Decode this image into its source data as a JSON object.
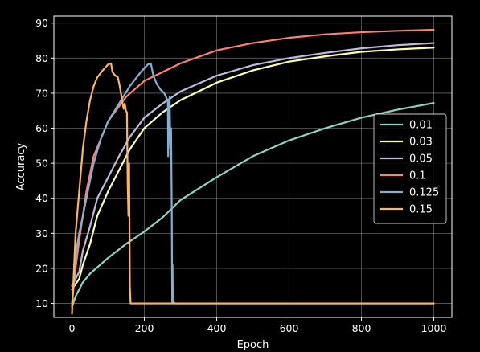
{
  "chart_data": {
    "type": "line",
    "title": "",
    "xlabel": "Epoch",
    "ylabel": "Accuracy",
    "xlim": [
      -50,
      1050
    ],
    "ylim": [
      6,
      92
    ],
    "xticks": [
      0,
      200,
      400,
      600,
      800,
      1000
    ],
    "yticks": [
      10,
      20,
      30,
      40,
      50,
      60,
      70,
      80,
      90
    ],
    "grid": true,
    "legend_position": "center-right",
    "background": "#000000",
    "grid_color": "#b0b0b0",
    "series": [
      {
        "name": "0.01",
        "color": "#8dd3c7",
        "points": [
          [
            0,
            9
          ],
          [
            10,
            12
          ],
          [
            30,
            16
          ],
          [
            50,
            18.5
          ],
          [
            100,
            23
          ],
          [
            150,
            27
          ],
          [
            200,
            30.5
          ],
          [
            250,
            34.5
          ],
          [
            300,
            39.5
          ],
          [
            400,
            46
          ],
          [
            500,
            52
          ],
          [
            600,
            56.5
          ],
          [
            700,
            60
          ],
          [
            800,
            63
          ],
          [
            900,
            65.3
          ],
          [
            1000,
            67.2
          ]
        ]
      },
      {
        "name": "0.03",
        "color": "#feffb3",
        "points": [
          [
            0,
            14
          ],
          [
            10,
            15.5
          ],
          [
            20,
            17
          ],
          [
            30,
            21
          ],
          [
            50,
            27
          ],
          [
            70,
            35
          ],
          [
            100,
            42
          ],
          [
            130,
            48
          ],
          [
            160,
            54
          ],
          [
            200,
            60
          ],
          [
            250,
            64.5
          ],
          [
            300,
            68
          ],
          [
            400,
            73
          ],
          [
            500,
            76.5
          ],
          [
            600,
            79
          ],
          [
            700,
            80.5
          ],
          [
            800,
            81.8
          ],
          [
            900,
            82.5
          ],
          [
            1000,
            83
          ]
        ]
      },
      {
        "name": "0.05",
        "color": "#bfbbd9",
        "points": [
          [
            0,
            15
          ],
          [
            10,
            17
          ],
          [
            20,
            19
          ],
          [
            30,
            25
          ],
          [
            50,
            32
          ],
          [
            70,
            40
          ],
          [
            100,
            46
          ],
          [
            130,
            52
          ],
          [
            160,
            57.5
          ],
          [
            200,
            63
          ],
          [
            250,
            67
          ],
          [
            300,
            70.5
          ],
          [
            400,
            75
          ],
          [
            500,
            78
          ],
          [
            600,
            80
          ],
          [
            700,
            81.5
          ],
          [
            800,
            82.8
          ],
          [
            900,
            83.7
          ],
          [
            1000,
            84.3
          ]
        ]
      },
      {
        "name": "0.1",
        "color": "#fa8174",
        "points": [
          [
            0,
            10
          ],
          [
            10,
            20
          ],
          [
            20,
            28
          ],
          [
            40,
            42
          ],
          [
            60,
            52
          ],
          [
            80,
            57
          ],
          [
            100,
            62
          ],
          [
            150,
            69
          ],
          [
            200,
            73.5
          ],
          [
            250,
            76
          ],
          [
            300,
            78.5
          ],
          [
            400,
            82.2
          ],
          [
            500,
            84.3
          ],
          [
            600,
            85.8
          ],
          [
            700,
            86.8
          ],
          [
            800,
            87.4
          ],
          [
            900,
            87.8
          ],
          [
            1000,
            88.1
          ]
        ]
      },
      {
        "name": "0.125",
        "color": "#81b1d2",
        "points": [
          [
            0,
            9
          ],
          [
            10,
            24
          ],
          [
            20,
            30
          ],
          [
            40,
            40
          ],
          [
            60,
            50
          ],
          [
            80,
            57
          ],
          [
            100,
            62
          ],
          [
            130,
            67
          ],
          [
            160,
            72
          ],
          [
            190,
            76
          ],
          [
            210,
            78.2
          ],
          [
            218,
            78.5
          ],
          [
            225,
            75
          ],
          [
            235,
            72.5
          ],
          [
            245,
            71
          ],
          [
            255,
            70
          ],
          [
            262,
            68.5
          ],
          [
            265,
            67.5
          ],
          [
            266,
            52
          ],
          [
            268,
            65
          ],
          [
            270,
            69
          ],
          [
            272,
            54
          ],
          [
            274,
            60
          ],
          [
            276,
            35
          ],
          [
            277,
            10
          ],
          [
            278,
            21
          ],
          [
            279,
            11
          ],
          [
            280,
            10.5
          ],
          [
            285,
            10
          ],
          [
            1000,
            10
          ]
        ]
      },
      {
        "name": "0.15",
        "color": "#fdb462",
        "points": [
          [
            0,
            7
          ],
          [
            10,
            30
          ],
          [
            20,
            42
          ],
          [
            30,
            54
          ],
          [
            40,
            62
          ],
          [
            50,
            68
          ],
          [
            60,
            72
          ],
          [
            70,
            74.5
          ],
          [
            85,
            76.5
          ],
          [
            100,
            78.2
          ],
          [
            108,
            78.5
          ],
          [
            112,
            76
          ],
          [
            120,
            75
          ],
          [
            127,
            74.5
          ],
          [
            132,
            72
          ],
          [
            137,
            69
          ],
          [
            140,
            67
          ],
          [
            143,
            65.5
          ],
          [
            146,
            67
          ],
          [
            149,
            65
          ],
          [
            152,
            64.5
          ],
          [
            154,
            44
          ],
          [
            156,
            35
          ],
          [
            158,
            50
          ],
          [
            160,
            15
          ],
          [
            162,
            10
          ],
          [
            1000,
            10
          ]
        ]
      }
    ]
  }
}
